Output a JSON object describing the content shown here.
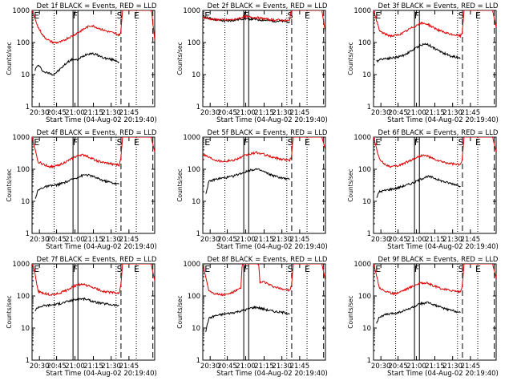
{
  "page": {
    "background": "#ffffff",
    "event_color": "#000000",
    "lld_color": "#dd0000"
  },
  "chart_data": [
    {
      "type": "line",
      "title": "Det 1f BLACK = Events, RED = LLD",
      "ylabel": "Counts/sec",
      "xlabel": "Start Time (04-Aug-02 20:19:40)",
      "xticks": [
        "20:30",
        "20:45",
        "21:00",
        "21:15",
        "21:30",
        "21:45"
      ],
      "yticks": [
        "1",
        "10",
        "100",
        "1000"
      ],
      "ylim": [
        1,
        1000
      ],
      "y_scale": "log",
      "xlim_min": [
        0,
        103
      ],
      "markers": [
        "E",
        "F",
        "S",
        "E"
      ],
      "series": [
        {
          "color": "#000000",
          "x": [
            2.5,
            5,
            10,
            15,
            18,
            22,
            26,
            30,
            34,
            38,
            42,
            46,
            50,
            54,
            58,
            62,
            66,
            70,
            73
          ],
          "y": [
            14,
            20,
            12,
            11,
            10,
            13,
            18,
            25,
            30,
            28,
            36,
            44,
            46,
            42,
            36,
            32,
            30,
            28,
            25
          ]
        },
        {
          "color": "#dd0000",
          "x": [
            0,
            5,
            10,
            15,
            18,
            22,
            26,
            30,
            34,
            38,
            42,
            46,
            50,
            54,
            58,
            62,
            66,
            70,
            73,
            74.5,
            75.5,
            76,
            77,
            99.5,
            100.5,
            103
          ],
          "y": [
            1000,
            300,
            150,
            110,
            100,
            100,
            110,
            140,
            160,
            200,
            240,
            300,
            340,
            300,
            260,
            230,
            210,
            190,
            170,
            200,
            600,
            1000,
            1000,
            1000,
            900,
            120
          ]
        }
      ]
    },
    {
      "type": "line",
      "title": "Det 2f BLACK = Events, RED = LLD",
      "ylabel": "Counts/sec",
      "xlabel": "Start Time (04-Aug-02 20:19:40)",
      "xticks": [
        "20:30",
        "20:45",
        "21:00",
        "21:15",
        "21:30",
        "21:45"
      ],
      "yticks": [
        "1",
        "10",
        "100",
        "1000"
      ],
      "ylim": [
        1,
        1000
      ],
      "y_scale": "log",
      "xlim_min": [
        0,
        103
      ],
      "markers": [
        "E",
        "F",
        "S",
        "E"
      ],
      "series": [
        {
          "color": "#000000",
          "x": [
            0,
            10,
            20,
            27,
            35,
            45,
            55,
            65,
            73
          ],
          "y": [
            650,
            520,
            460,
            500,
            560,
            520,
            480,
            460,
            450
          ]
        },
        {
          "color": "#dd0000",
          "x": [
            0,
            10,
            20,
            27,
            35,
            45,
            55,
            65,
            73,
            74,
            75,
            76,
            77,
            100,
            103
          ],
          "y": [
            600,
            520,
            500,
            520,
            650,
            600,
            520,
            500,
            480,
            900,
            1000,
            1000,
            1000,
            1000,
            200
          ]
        }
      ]
    },
    {
      "type": "line",
      "title": "Det 3f BLACK = Events, RED = LLD",
      "ylabel": "Counts/sec",
      "xlabel": "Start Time (04-Aug-02 20:19:40)",
      "xticks": [
        "20:30",
        "20:45",
        "21:00",
        "21:15",
        "21:30",
        "21:45"
      ],
      "yticks": [
        "1",
        "10",
        "100",
        "1000"
      ],
      "ylim": [
        1,
        1000
      ],
      "y_scale": "log",
      "xlim_min": [
        0,
        103
      ],
      "markers": [
        "E",
        "F",
        "S",
        "E"
      ],
      "series": [
        {
          "color": "#000000",
          "x": [
            2.5,
            5,
            10,
            15,
            20,
            25,
            30,
            35,
            40,
            45,
            50,
            55,
            60,
            65,
            70,
            73
          ],
          "y": [
            25,
            30,
            32,
            33,
            35,
            40,
            50,
            65,
            85,
            90,
            70,
            55,
            45,
            38,
            35,
            33
          ]
        },
        {
          "color": "#dd0000",
          "x": [
            0,
            2.5,
            5,
            10,
            15,
            20,
            25,
            30,
            35,
            40,
            45,
            50,
            55,
            60,
            65,
            70,
            73,
            74.5,
            75.5,
            76,
            77,
            100,
            103
          ],
          "y": [
            1000,
            500,
            230,
            180,
            160,
            170,
            200,
            260,
            330,
            400,
            380,
            300,
            240,
            200,
            180,
            170,
            160,
            200,
            600,
            1000,
            1000,
            1000,
            300
          ]
        }
      ]
    },
    {
      "type": "line",
      "title": "Det 4f BLACK = Events, RED = LLD",
      "ylabel": "Counts/sec",
      "xlabel": "Start Time (04-Aug-02 20:19:40)",
      "xticks": [
        "20:30",
        "20:45",
        "21:00",
        "21:15",
        "21:30",
        "21:45"
      ],
      "yticks": [
        "1",
        "10",
        "100",
        "1000"
      ],
      "ylim": [
        1,
        1000
      ],
      "y_scale": "log",
      "xlim_min": [
        0,
        103
      ],
      "markers": [
        "E",
        "F",
        "S",
        "E"
      ],
      "series": [
        {
          "color": "#000000",
          "x": [
            2.5,
            5,
            10,
            15,
            20,
            25,
            30,
            35,
            40,
            45,
            50,
            55,
            60,
            65,
            70,
            73
          ],
          "y": [
            12,
            22,
            28,
            30,
            32,
            36,
            42,
            50,
            60,
            68,
            62,
            52,
            44,
            40,
            36,
            34
          ]
        },
        {
          "color": "#dd0000",
          "x": [
            0,
            2.5,
            5,
            10,
            15,
            20,
            25,
            30,
            35,
            40,
            45,
            50,
            55,
            60,
            65,
            70,
            73,
            74.5,
            75.5,
            76,
            77,
            100,
            103
          ],
          "y": [
            1000,
            400,
            170,
            140,
            120,
            125,
            150,
            180,
            230,
            280,
            270,
            220,
            180,
            160,
            150,
            140,
            135,
            200,
            600,
            1000,
            1000,
            1000,
            350
          ]
        }
      ]
    },
    {
      "type": "line",
      "title": "Det 5f BLACK = Events, RED = LLD",
      "ylabel": "Counts/sec",
      "xlabel": "Start Time (04-Aug-02 20:19:40)",
      "xticks": [
        "20:30",
        "20:45",
        "21:00",
        "21:15",
        "21:30",
        "21:45"
      ],
      "yticks": [
        "1",
        "10",
        "100",
        "1000"
      ],
      "ylim": [
        1,
        1000
      ],
      "y_scale": "log",
      "xlim_min": [
        0,
        103
      ],
      "markers": [
        "E",
        "F",
        "S",
        "E"
      ],
      "series": [
        {
          "color": "#000000",
          "x": [
            2.5,
            5,
            10,
            15,
            20,
            25,
            30,
            35,
            40,
            45,
            50,
            55,
            60,
            65,
            70,
            73
          ],
          "y": [
            17,
            40,
            48,
            52,
            55,
            60,
            70,
            80,
            95,
            100,
            88,
            72,
            62,
            55,
            50,
            48
          ]
        },
        {
          "color": "#dd0000",
          "x": [
            0,
            5,
            10,
            15,
            20,
            25,
            30,
            35,
            40,
            45,
            50,
            55,
            60,
            65,
            70,
            73,
            74.5,
            75.5,
            76,
            77,
            100,
            103
          ],
          "y": [
            300,
            240,
            200,
            180,
            180,
            190,
            220,
            260,
            300,
            330,
            300,
            260,
            230,
            210,
            200,
            190,
            250,
            700,
            1000,
            1000,
            1000,
            400
          ]
        }
      ]
    },
    {
      "type": "line",
      "title": "Det 6f BLACK = Events, RED = LLD",
      "ylabel": "Counts/sec",
      "xlabel": "Start Time (04-Aug-02 20:19:40)",
      "xticks": [
        "20:30",
        "20:45",
        "21:00",
        "21:15",
        "21:30",
        "21:45"
      ],
      "yticks": [
        "1",
        "10",
        "100",
        "1000"
      ],
      "ylim": [
        1,
        1000
      ],
      "y_scale": "log",
      "xlim_min": [
        0,
        103
      ],
      "markers": [
        "E",
        "F",
        "S",
        "E"
      ],
      "series": [
        {
          "color": "#000000",
          "x": [
            2.5,
            5,
            10,
            15,
            20,
            25,
            30,
            35,
            40,
            45,
            50,
            55,
            60,
            65,
            70,
            73
          ],
          "y": [
            13,
            20,
            22,
            24,
            26,
            30,
            34,
            40,
            50,
            60,
            55,
            46,
            40,
            36,
            33,
            30
          ]
        },
        {
          "color": "#dd0000",
          "x": [
            0,
            2.5,
            5,
            10,
            15,
            20,
            25,
            30,
            35,
            40,
            45,
            50,
            55,
            60,
            65,
            70,
            73,
            74.5,
            75.5,
            76,
            77,
            100,
            103
          ],
          "y": [
            1000,
            450,
            200,
            140,
            120,
            125,
            150,
            180,
            220,
            270,
            260,
            210,
            180,
            160,
            150,
            140,
            135,
            200,
            600,
            1000,
            1000,
            1000,
            350
          ]
        }
      ]
    },
    {
      "type": "line",
      "title": "Det 7f BLACK = Events, RED = LLD",
      "ylabel": "Counts/sec",
      "xlabel": "Start Time (04-Aug-02 20:19:40)",
      "xticks": [
        "20:30",
        "20:45",
        "21:00",
        "21:15",
        "21:30",
        "21:45"
      ],
      "yticks": [
        "1",
        "10",
        "100",
        "1000"
      ],
      "ylim": [
        1,
        1000
      ],
      "y_scale": "log",
      "xlim_min": [
        0,
        103
      ],
      "markers": [
        "E",
        "F",
        "S",
        "E"
      ],
      "series": [
        {
          "color": "#000000",
          "x": [
            2.5,
            5,
            10,
            15,
            20,
            25,
            30,
            35,
            40,
            45,
            50,
            55,
            60,
            65,
            70,
            73
          ],
          "y": [
            35,
            45,
            50,
            52,
            55,
            60,
            68,
            75,
            82,
            80,
            70,
            62,
            58,
            55,
            52,
            50
          ]
        },
        {
          "color": "#dd0000",
          "x": [
            0,
            2.5,
            5,
            10,
            15,
            20,
            25,
            30,
            35,
            40,
            45,
            50,
            55,
            60,
            65,
            70,
            73,
            74.5,
            75.5,
            76,
            77,
            100,
            103
          ],
          "y": [
            1000,
            500,
            140,
            120,
            110,
            115,
            130,
            160,
            200,
            230,
            220,
            190,
            160,
            140,
            130,
            125,
            120,
            200,
            600,
            1000,
            1000,
            1000,
            300
          ]
        }
      ]
    },
    {
      "type": "line",
      "title": "Det 8f BLACK = Events, RED = LLD",
      "ylabel": "Counts/sec",
      "xlabel": "Start Time (04-Aug-02 20:19:40)",
      "xticks": [
        "20:30",
        "20:45",
        "21:00",
        "21:15",
        "21:30",
        "21:45"
      ],
      "yticks": [
        "1",
        "10",
        "100",
        "1000"
      ],
      "ylim": [
        1,
        1000
      ],
      "y_scale": "log",
      "xlim_min": [
        0,
        103
      ],
      "markers": [
        "E",
        "F",
        "S",
        "E"
      ],
      "series": [
        {
          "color": "#000000",
          "x": [
            2.5,
            5,
            10,
            15,
            20,
            25,
            30,
            35,
            40,
            45,
            50,
            55,
            60,
            65,
            70,
            73
          ],
          "y": [
            8,
            20,
            24,
            26,
            28,
            30,
            33,
            36,
            42,
            45,
            40,
            36,
            33,
            31,
            30,
            28
          ]
        },
        {
          "color": "#dd0000",
          "x": [
            0,
            5,
            10,
            15,
            20,
            25,
            30,
            32,
            33,
            34,
            46,
            47,
            48,
            50,
            52,
            56,
            60,
            65,
            70,
            73,
            74.5,
            75.5,
            76,
            77,
            100,
            103
          ],
          "y": [
            1000,
            150,
            120,
            110,
            110,
            130,
            160,
            170,
            900,
            1000,
            1000,
            900,
            250,
            280,
            270,
            220,
            190,
            170,
            160,
            150,
            200,
            600,
            1000,
            1000,
            1000,
            300
          ]
        }
      ]
    },
    {
      "type": "line",
      "title": "Det 9f BLACK = Events, RED = LLD",
      "ylabel": "Counts/sec",
      "xlabel": "Start Time (04-Aug-02 20:19:40)",
      "xticks": [
        "20:30",
        "20:45",
        "21:00",
        "21:15",
        "21:30",
        "21:45"
      ],
      "yticks": [
        "1",
        "10",
        "100",
        "1000"
      ],
      "ylim": [
        1,
        1000
      ],
      "y_scale": "log",
      "xlim_min": [
        0,
        103
      ],
      "markers": [
        "E",
        "F",
        "S",
        "E"
      ],
      "series": [
        {
          "color": "#000000",
          "x": [
            2.5,
            5,
            10,
            15,
            20,
            25,
            30,
            35,
            40,
            45,
            50,
            55,
            60,
            65,
            70,
            73
          ],
          "y": [
            15,
            22,
            26,
            28,
            30,
            34,
            40,
            48,
            58,
            62,
            55,
            46,
            40,
            36,
            33,
            30
          ]
        },
        {
          "color": "#dd0000",
          "x": [
            0,
            2.5,
            5,
            10,
            15,
            20,
            25,
            30,
            35,
            40,
            45,
            50,
            55,
            60,
            65,
            70,
            73,
            74.5,
            75.5,
            76,
            77,
            100,
            103
          ],
          "y": [
            1000,
            450,
            180,
            140,
            120,
            125,
            150,
            180,
            220,
            260,
            250,
            210,
            180,
            160,
            150,
            140,
            135,
            200,
            600,
            1000,
            1000,
            1000,
            350
          ]
        }
      ]
    }
  ]
}
